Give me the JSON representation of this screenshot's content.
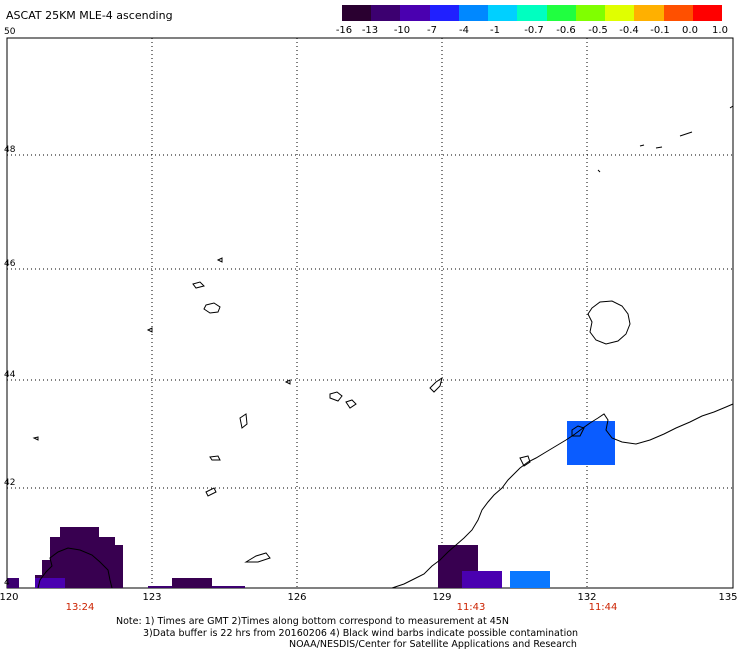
{
  "title": "ASCAT 25KM MLE-4 ascending",
  "colorbar": {
    "labels": [
      "-16",
      "-13",
      "-10",
      "-7",
      "-4",
      "-1",
      "-0.7",
      "-0.6",
      "-0.5",
      "-0.4",
      "-0.1",
      "0.0",
      "1.0"
    ],
    "colors": [
      "#2a0030",
      "#3c0070",
      "#4a00b0",
      "#2020ff",
      "#0088ff",
      "#00d0ff",
      "#00ffc0",
      "#20ff40",
      "#80ff00",
      "#e0ff00",
      "#ffb000",
      "#ff5000",
      "#ff0000"
    ]
  },
  "lat_labels": [
    "50",
    "48",
    "46",
    "44",
    "42",
    "4"
  ],
  "lon_labels": [
    "120",
    "123",
    "126",
    "129",
    "132",
    "135"
  ],
  "time_labels": [
    "13:24",
    "11:43",
    "11:44"
  ],
  "notes": {
    "line1": "Note: 1) Times are GMT 2)Times along bottom correspond to measurement at 45N",
    "line2": "3)Data buffer is 22 hrs from 20160206 4) Black wind barbs indicate possible contamination",
    "line3": "NOAA/NESDIS/Center for Satellite Applications and Research"
  },
  "data_colors": {
    "dark_purple": "#380050",
    "purple": "#4a00b0",
    "blue": "#0a5cff",
    "light_blue": "#0a78ff"
  }
}
